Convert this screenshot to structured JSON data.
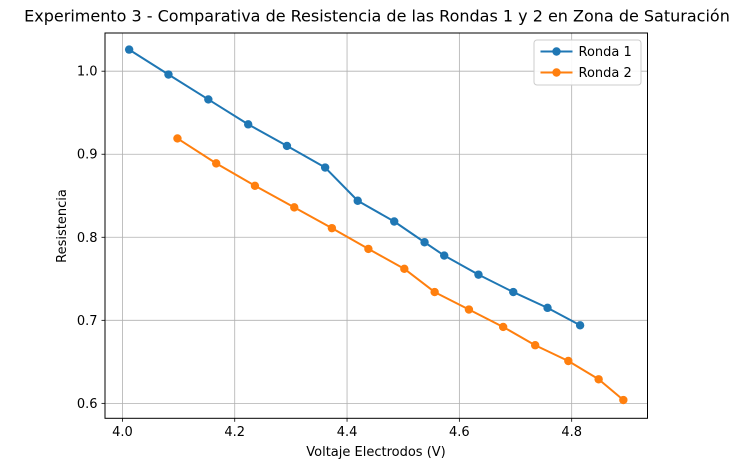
{
  "chart_data": {
    "type": "line",
    "title": "Experimento 3 - Comparativa de Resistencia de las Rondas 1 y 2 en Zona de Saturación",
    "xlabel": "Voltaje Electrodos (V)",
    "ylabel": "Resistencia",
    "xlim": [
      3.969,
      4.935
    ],
    "ylim": [
      0.582,
      1.046
    ],
    "xticks": [
      4.0,
      4.2,
      4.4,
      4.6,
      4.8
    ],
    "yticks": [
      0.6,
      0.7,
      0.8,
      0.9,
      1.0
    ],
    "grid": true,
    "grid_color": "#b0b0b0",
    "spine_color": "#000000",
    "background_color": "#ffffff",
    "legend_position": "upper right",
    "series": [
      {
        "name": "Ronda 1",
        "color": "#1f77b4",
        "marker": "circle",
        "x": [
          4.012,
          4.082,
          4.153,
          4.224,
          4.293,
          4.361,
          4.419,
          4.484,
          4.538,
          4.573,
          4.634,
          4.696,
          4.757,
          4.815
        ],
        "y": [
          1.026,
          0.996,
          0.966,
          0.936,
          0.91,
          0.884,
          0.844,
          0.819,
          0.794,
          0.778,
          0.755,
          0.734,
          0.715,
          0.694
        ]
      },
      {
        "name": "Ronda 2",
        "color": "#ff7f0e",
        "marker": "circle",
        "x": [
          4.098,
          4.167,
          4.236,
          4.306,
          4.373,
          4.438,
          4.502,
          4.556,
          4.617,
          4.678,
          4.735,
          4.794,
          4.848,
          4.892
        ],
        "y": [
          0.919,
          0.889,
          0.862,
          0.836,
          0.811,
          0.786,
          0.762,
          0.734,
          0.713,
          0.692,
          0.67,
          0.651,
          0.629,
          0.604
        ]
      }
    ]
  }
}
